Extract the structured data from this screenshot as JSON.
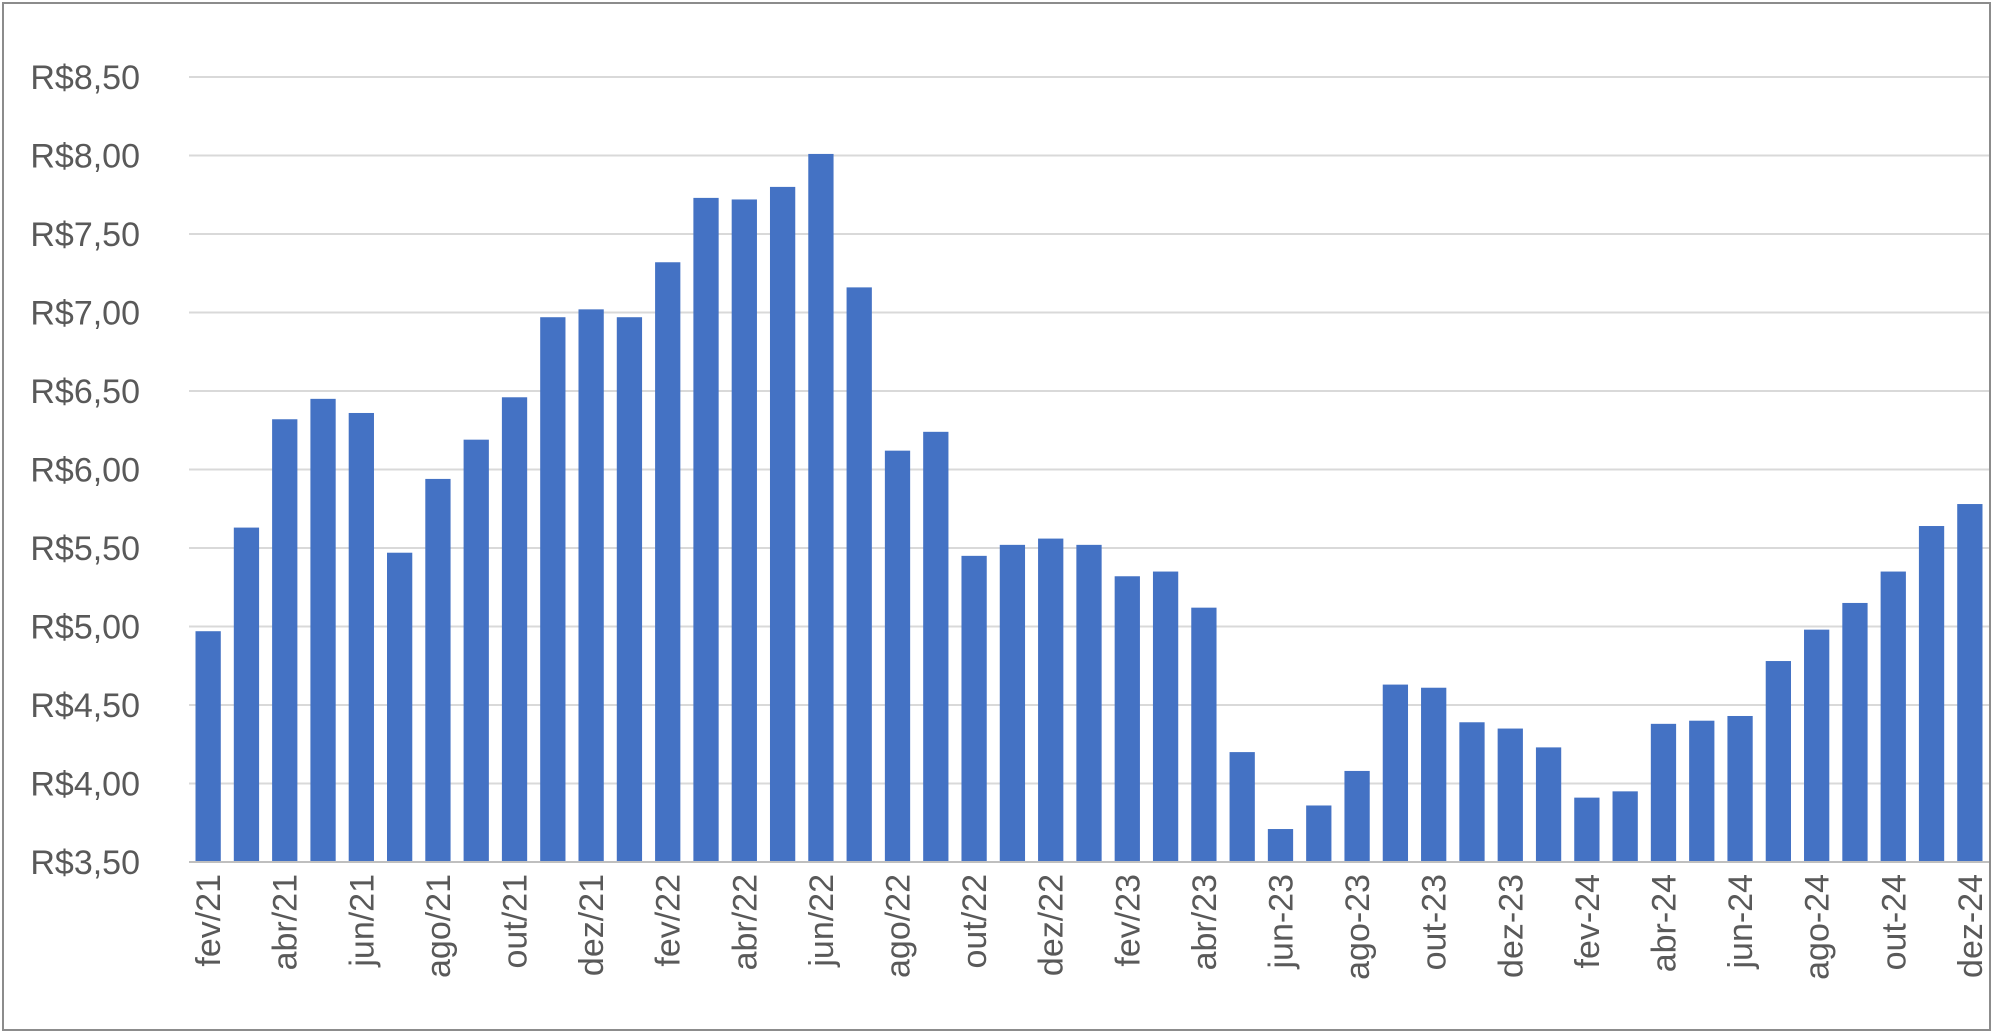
{
  "chart_data": {
    "type": "bar",
    "title": "",
    "xlabel": "",
    "ylabel": "",
    "ylim": [
      3.5,
      8.5
    ],
    "yticks": [
      3.5,
      4.0,
      4.5,
      5.0,
      5.5,
      6.0,
      6.5,
      7.0,
      7.5,
      8.0,
      8.5
    ],
    "ytick_labels": [
      "R$3,50",
      "R$4,00",
      "R$4,50",
      "R$5,00",
      "R$5,50",
      "R$6,00",
      "R$6,50",
      "R$7,00",
      "R$7,50",
      "R$8,00",
      "R$8,50"
    ],
    "grid": true,
    "legend": "none",
    "bar_color": "#4472c4",
    "categories": [
      "fev/21",
      "mar/21",
      "abr/21",
      "mai/21",
      "jun/21",
      "jul/21",
      "ago/21",
      "set/21",
      "out/21",
      "nov/21",
      "dez/21",
      "jan/22",
      "fev/22",
      "mar/22",
      "abr/22",
      "mai/22",
      "jun/22",
      "jul/22",
      "ago/22",
      "set/22",
      "out/22",
      "nov/22",
      "dez/22",
      "jan/23",
      "fev/23",
      "mar/23",
      "abr/23",
      "mai/23",
      "jun-23",
      "jul-23",
      "ago-23",
      "set-23",
      "out-23",
      "nov-23",
      "dez-23",
      "jan-24",
      "fev-24",
      "mar-24",
      "abr-24",
      "mai-24",
      "jun-24",
      "jul-24",
      "ago-24",
      "set-24",
      "out-24",
      "nov-24",
      "dez-24"
    ],
    "shown_tick_labels": [
      "fev/21",
      "abr/21",
      "jun/21",
      "ago/21",
      "out/21",
      "dez/21",
      "fev/22",
      "abr/22",
      "jun/22",
      "ago/22",
      "out/22",
      "dez/22",
      "fev/23",
      "abr/23",
      "jun-23",
      "ago-23",
      "out-23",
      "dez-23",
      "fev-24",
      "abr-24",
      "jun-24",
      "ago-24",
      "out-24",
      "dez-24"
    ],
    "values": [
      4.97,
      5.63,
      6.32,
      6.45,
      6.36,
      5.47,
      5.94,
      6.19,
      6.46,
      6.97,
      7.02,
      6.97,
      7.32,
      7.73,
      7.72,
      7.8,
      8.01,
      7.16,
      6.12,
      6.24,
      5.45,
      5.52,
      5.56,
      5.52,
      5.32,
      5.35,
      5.12,
      4.2,
      3.71,
      3.86,
      4.08,
      4.63,
      4.61,
      4.39,
      4.35,
      4.23,
      3.91,
      3.95,
      4.38,
      4.4,
      4.43,
      4.78,
      4.98,
      5.15,
      5.35,
      5.64,
      5.78
    ]
  }
}
